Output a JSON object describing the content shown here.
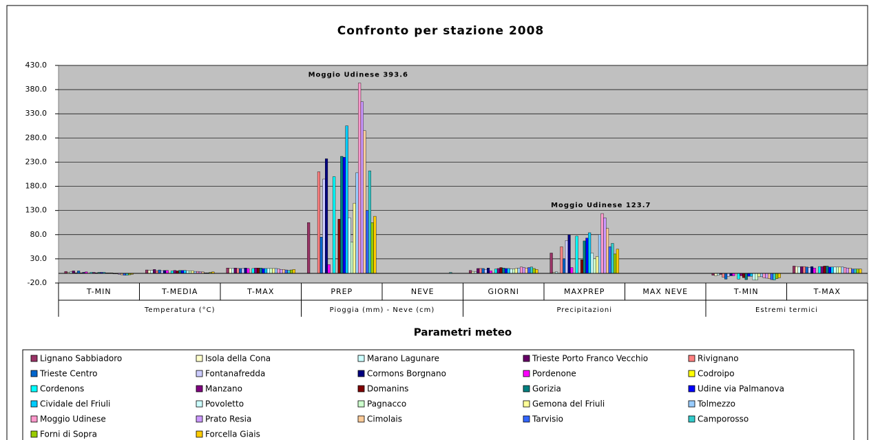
{
  "chart_data": {
    "type": "bar",
    "title": "Confronto per stazione 2008",
    "x_label": "Parametri meteo",
    "categories": [
      "T-MIN",
      "T-MEDIA",
      "T-MAX",
      "PREP",
      "NEVE",
      "GIORNI",
      "MAXPREP",
      "MAX NEVE",
      "T-MIN",
      "T-MAX"
    ],
    "group_labels": [
      "Temperatura (°C)",
      "Pioggia (mm) - Neve (cm)",
      "Precipitazioni",
      "Estremi termici"
    ],
    "annotations": [
      "Moggio Udinese 393.6",
      "Moggio Udinese 123.7"
    ],
    "ylim": [
      -20,
      430
    ],
    "yticks": [
      {
        "value": -20,
        "label": "-20.0"
      },
      {
        "value": 30,
        "label": "30.0"
      },
      {
        "value": 80,
        "label": "80.0"
      },
      {
        "value": 130,
        "label": "130.0"
      },
      {
        "value": 180,
        "label": "180.0"
      },
      {
        "value": 230,
        "label": "230.0"
      },
      {
        "value": 280,
        "label": "280.0"
      },
      {
        "value": 330,
        "label": "330.0"
      },
      {
        "value": 380,
        "label": "380.0"
      },
      {
        "value": 430,
        "label": "430.0"
      }
    ],
    "grid": true,
    "series": [
      {
        "name": "Lignano Sabbiadoro",
        "color": "#993366",
        "values": [
          4,
          7,
          11,
          105,
          0,
          6,
          42,
          0,
          -4,
          15
        ]
      },
      {
        "name": "Isola della Cona",
        "color": "#FFFFCC",
        "values": [
          2,
          6,
          10,
          0,
          0,
          4,
          2,
          0,
          -5,
          14
        ]
      },
      {
        "name": "Marano Lagunare",
        "color": "#CCFFFF",
        "values": [
          3,
          6,
          10,
          0,
          0,
          3,
          3,
          0,
          -4,
          13
        ]
      },
      {
        "name": "Trieste Porto Franco Vecchio",
        "color": "#660066",
        "values": [
          5,
          8,
          11,
          0,
          0,
          10,
          0,
          0,
          -2,
          14
        ]
      },
      {
        "name": "Rivignano",
        "color": "#FF8080",
        "values": [
          1,
          5,
          10,
          210,
          0,
          10,
          55,
          0,
          -8,
          14
        ]
      },
      {
        "name": "Trieste Centro",
        "color": "#0066CC",
        "values": [
          5,
          7,
          10,
          75,
          0,
          10,
          30,
          0,
          -12,
          13
        ]
      },
      {
        "name": "Fontanafredda",
        "color": "#CCCCFF",
        "values": [
          1,
          5,
          10,
          195,
          0,
          8,
          68,
          0,
          -6,
          12
        ]
      },
      {
        "name": "Cormons Borgnano",
        "color": "#000080",
        "values": [
          2,
          6,
          11,
          237,
          0,
          11,
          80,
          0,
          -5,
          14
        ]
      },
      {
        "name": "Pordenone",
        "color": "#FF00FF",
        "values": [
          3,
          6,
          10,
          18,
          0,
          5,
          12,
          0,
          -5,
          11
        ]
      },
      {
        "name": "Codroipo",
        "color": "#FFFF00",
        "values": [
          0,
          0,
          0,
          0,
          0,
          0,
          0,
          0,
          0,
          0
        ]
      },
      {
        "name": "Cordenons",
        "color": "#00FFFF",
        "values": [
          2,
          5,
          10,
          200,
          0,
          9,
          77,
          0,
          -12,
          14
        ]
      },
      {
        "name": "Manzano",
        "color": "#800080",
        "values": [
          2,
          6,
          11,
          0,
          0,
          10,
          0,
          0,
          -5,
          14
        ]
      },
      {
        "name": "Domanins",
        "color": "#800000",
        "values": [
          1,
          5,
          11,
          112,
          0,
          12,
          28,
          0,
          -9,
          15
        ]
      },
      {
        "name": "Gorizia",
        "color": "#008080",
        "values": [
          2,
          6,
          11,
          242,
          0,
          11,
          67,
          0,
          -13,
          15
        ]
      },
      {
        "name": "Udine via Palmanova",
        "color": "#0000FF",
        "values": [
          2,
          6,
          10,
          240,
          0,
          10,
          73,
          0,
          -6,
          13
        ]
      },
      {
        "name": "Cividale del Friuli",
        "color": "#00CCFF",
        "values": [
          2,
          6,
          10,
          305,
          0,
          10,
          84,
          0,
          -6,
          13
        ]
      },
      {
        "name": "Povoletto",
        "color": "#CCFFFF",
        "values": [
          1,
          5,
          10,
          115,
          0,
          9,
          42,
          0,
          -14,
          13
        ]
      },
      {
        "name": "Pagnacco",
        "color": "#CCFFCC",
        "values": [
          1,
          5,
          10,
          65,
          0,
          9,
          30,
          0,
          -14,
          13
        ]
      },
      {
        "name": "Gemona del Friuli",
        "color": "#FFFF99",
        "values": [
          1,
          5,
          10,
          145,
          0,
          10,
          35,
          0,
          -7,
          13
        ]
      },
      {
        "name": "Tolmezzo",
        "color": "#99CCFF",
        "values": [
          -1,
          4,
          10,
          208,
          0,
          11,
          80,
          0,
          -7,
          13
        ]
      },
      {
        "name": "Moggio Udinese",
        "color": "#FF99CC",
        "values": [
          -1,
          4,
          9,
          393.6,
          0,
          13,
          123.7,
          0,
          -9,
          12
        ]
      },
      {
        "name": "Prato Resia",
        "color": "#CC99FF",
        "values": [
          -2,
          3,
          8,
          355,
          0,
          12,
          115,
          0,
          -10,
          11
        ]
      },
      {
        "name": "Cimolais",
        "color": "#FFCC99",
        "values": [
          -3,
          3,
          8,
          295,
          0,
          11,
          93,
          0,
          -11,
          11
        ]
      },
      {
        "name": "Tarvisio",
        "color": "#3366FF",
        "values": [
          -4,
          1,
          7,
          130,
          0,
          12,
          55,
          0,
          -13,
          9
        ]
      },
      {
        "name": "Camporosso",
        "color": "#33CCCC",
        "values": [
          -4,
          1,
          6,
          212,
          2,
          13,
          62,
          0,
          -14,
          9
        ]
      },
      {
        "name": "Forni di Sopra",
        "color": "#99CC00",
        "values": [
          -3,
          2,
          7,
          105,
          0,
          10,
          40,
          0,
          -11,
          9
        ]
      },
      {
        "name": "Forcella Giais",
        "color": "#FFCC00",
        "values": [
          -2,
          3,
          8,
          118,
          0,
          8,
          50,
          0,
          -9,
          9
        ]
      }
    ]
  }
}
